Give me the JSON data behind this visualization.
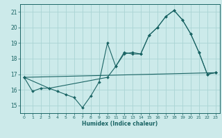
{
  "xlabel": "Humidex (Indice chaleur)",
  "bg_color": "#cceaea",
  "grid_color": "#aad4d4",
  "line_color": "#1a6464",
  "xlim": [
    -0.5,
    23.5
  ],
  "ylim": [
    14.5,
    21.5
  ],
  "xticks": [
    0,
    1,
    2,
    3,
    4,
    5,
    6,
    7,
    8,
    9,
    10,
    11,
    12,
    13,
    14,
    15,
    16,
    17,
    18,
    19,
    20,
    21,
    22,
    23
  ],
  "yticks": [
    15,
    16,
    17,
    18,
    19,
    20,
    21
  ],
  "series1_x": [
    0,
    1,
    2,
    3,
    4,
    5,
    6,
    7,
    8,
    9,
    10,
    11,
    12,
    13,
    14,
    15,
    16,
    17,
    18,
    19,
    20,
    21,
    22,
    23
  ],
  "series1_y": [
    16.8,
    15.9,
    16.1,
    16.1,
    15.9,
    15.7,
    15.5,
    14.85,
    15.6,
    16.5,
    19.0,
    17.5,
    18.4,
    18.3,
    18.3,
    19.5,
    20.0,
    20.7,
    21.1,
    20.5,
    19.6,
    18.4,
    17.0,
    17.1
  ],
  "series2_x": [
    0,
    3,
    10,
    11,
    12,
    13,
    14,
    15,
    16,
    17,
    18,
    19,
    20,
    21,
    22,
    23
  ],
  "series2_y": [
    16.8,
    16.1,
    16.8,
    17.5,
    18.3,
    18.4,
    18.3,
    19.5,
    20.0,
    20.7,
    21.1,
    20.5,
    19.6,
    18.4,
    17.0,
    17.1
  ],
  "series3_x": [
    0,
    23
  ],
  "series3_y": [
    16.8,
    17.1
  ]
}
